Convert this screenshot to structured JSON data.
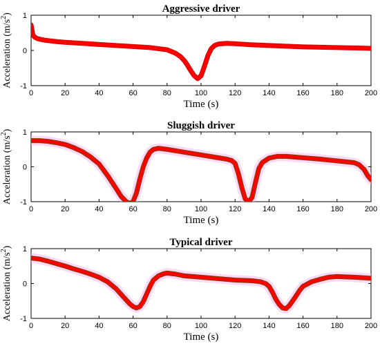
{
  "chart_data": [
    {
      "type": "line",
      "title": "Aggressive driver",
      "xlabel": "Time (s)",
      "ylabel": "Acceleration (m/s",
      "ylabel_sup": "2",
      "ylabel_close": ")",
      "xlim": [
        0,
        200
      ],
      "ylim": [
        -1,
        1
      ],
      "xticks": [
        0,
        20,
        40,
        60,
        80,
        100,
        120,
        140,
        160,
        180,
        200
      ],
      "yticks": [
        -1,
        0,
        1
      ],
      "grid": false,
      "series_color": "#ff0000",
      "series_edge_color": "#dd0000",
      "band_color": "",
      "x": [
        0,
        1,
        2,
        4,
        8,
        15,
        20,
        30,
        40,
        50,
        60,
        70,
        80,
        85,
        88,
        90,
        92,
        94,
        96,
        98,
        100,
        102,
        104,
        106,
        108,
        110,
        115,
        120,
        130,
        140,
        150,
        160,
        170,
        180,
        190,
        200
      ],
      "y": [
        0.72,
        0.45,
        0.38,
        0.33,
        0.29,
        0.25,
        0.23,
        0.2,
        0.17,
        0.14,
        0.11,
        0.08,
        0.02,
        -0.08,
        -0.18,
        -0.28,
        -0.42,
        -0.58,
        -0.72,
        -0.8,
        -0.72,
        -0.45,
        -0.15,
        0.05,
        0.14,
        0.18,
        0.2,
        0.19,
        0.16,
        0.14,
        0.12,
        0.1,
        0.09,
        0.08,
        0.07,
        0.06
      ]
    },
    {
      "type": "line",
      "title": "Sluggish driver",
      "xlabel": "Time (s)",
      "ylabel": "Acceleration (m/s",
      "ylabel_sup": "2",
      "ylabel_close": ")",
      "xlim": [
        0,
        200
      ],
      "ylim": [
        -1,
        1
      ],
      "xticks": [
        0,
        20,
        40,
        60,
        80,
        100,
        120,
        140,
        160,
        180,
        200
      ],
      "yticks": [
        -1,
        0,
        1
      ],
      "grid": false,
      "series_color": "#ff0000",
      "series_edge_color": "#8a3a00",
      "band_color": "#f7b8f0",
      "x": [
        0,
        5,
        10,
        15,
        20,
        25,
        30,
        35,
        40,
        45,
        50,
        53,
        56,
        58,
        60,
        62,
        64,
        66,
        68,
        70,
        72,
        75,
        80,
        90,
        100,
        110,
        115,
        118,
        120,
        122,
        124,
        126,
        128,
        130,
        132,
        134,
        136,
        140,
        145,
        150,
        160,
        170,
        180,
        190,
        193,
        196,
        198,
        200
      ],
      "y": [
        0.75,
        0.75,
        0.73,
        0.69,
        0.64,
        0.55,
        0.44,
        0.28,
        0.08,
        -0.25,
        -0.62,
        -0.85,
        -1.0,
        -1.05,
        -1.0,
        -0.75,
        -0.35,
        0.0,
        0.25,
        0.42,
        0.5,
        0.53,
        0.5,
        0.42,
        0.34,
        0.26,
        0.22,
        0.18,
        0.1,
        -0.2,
        -0.6,
        -0.92,
        -1.0,
        -0.88,
        -0.45,
        -0.05,
        0.12,
        0.25,
        0.3,
        0.3,
        0.26,
        0.22,
        0.17,
        0.12,
        0.06,
        -0.08,
        -0.25,
        -0.37
      ]
    },
    {
      "type": "line",
      "title": "Typical driver",
      "xlabel": "Time (s)",
      "ylabel": "Acceleration (m/s",
      "ylabel_sup": "2",
      "ylabel_close": ")",
      "xlim": [
        0,
        200
      ],
      "ylim": [
        -1,
        1
      ],
      "xticks": [
        0,
        20,
        40,
        60,
        80,
        100,
        120,
        140,
        160,
        180,
        200
      ],
      "yticks": [
        -1,
        0,
        1
      ],
      "grid": false,
      "series_color": "#ff0000",
      "series_edge_color": "#8a3a00",
      "band_color": "#f7b8f0",
      "x": [
        0,
        5,
        10,
        15,
        20,
        25,
        30,
        35,
        40,
        45,
        50,
        55,
        58,
        60,
        62,
        64,
        66,
        68,
        70,
        72,
        75,
        78,
        80,
        85,
        90,
        100,
        110,
        120,
        130,
        135,
        138,
        140,
        142,
        144,
        146,
        148,
        150,
        152,
        155,
        158,
        160,
        165,
        170,
        175,
        180,
        190,
        200
      ],
      "y": [
        0.73,
        0.7,
        0.64,
        0.57,
        0.5,
        0.42,
        0.35,
        0.27,
        0.18,
        0.05,
        -0.15,
        -0.42,
        -0.58,
        -0.66,
        -0.7,
        -0.66,
        -0.52,
        -0.3,
        -0.08,
        0.1,
        0.22,
        0.28,
        0.3,
        0.27,
        0.22,
        0.18,
        0.14,
        0.1,
        0.08,
        0.05,
        0.0,
        -0.08,
        -0.25,
        -0.45,
        -0.6,
        -0.7,
        -0.72,
        -0.63,
        -0.42,
        -0.2,
        -0.08,
        0.05,
        0.12,
        0.18,
        0.2,
        0.18,
        0.15
      ]
    }
  ]
}
